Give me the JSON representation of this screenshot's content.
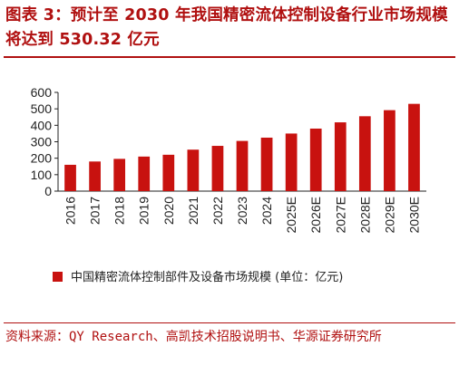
{
  "title": "图表 3：预计至 2030 年我国精密流体控制设备行业市场规模将达到 530.32 亿元",
  "source": "资料来源：QY Research、高凯技术招股说明书、华源证券研究所",
  "colors": {
    "bar": "#c8120f",
    "accent": "#b01010",
    "axis": "#222222"
  },
  "chart_data": {
    "type": "bar",
    "categories": [
      "2016",
      "2017",
      "2018",
      "2019",
      "2020",
      "2021",
      "2022",
      "2023",
      "2024",
      "2025E",
      "2026E",
      "2027E",
      "2028E",
      "2029E",
      "2030E"
    ],
    "series": [
      {
        "name": "中国精密流体控制部件及设备市场规模 (单位：亿元)",
        "values": [
          160,
          180,
          196,
          210,
          221,
          252,
          275,
          305,
          325,
          350,
          380,
          418,
          455,
          492,
          530.32
        ]
      }
    ],
    "ylim": [
      0,
      600
    ],
    "yticks": [
      0,
      100,
      200,
      300,
      400,
      500,
      600
    ],
    "grid": false,
    "legend": "bottom-left"
  }
}
